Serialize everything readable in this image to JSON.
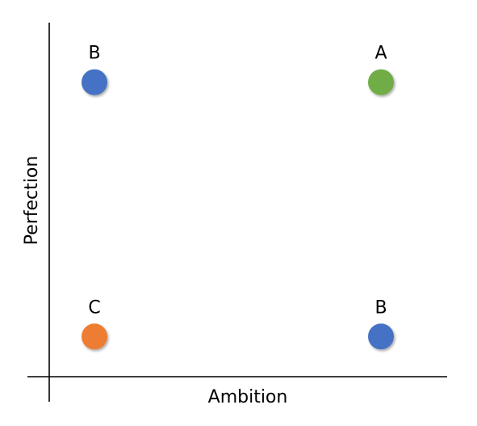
{
  "chart_data": {
    "type": "scatter",
    "xlabel": "Ambition",
    "ylabel": "Perfection",
    "xlim": [
      0,
      1
    ],
    "ylim": [
      0,
      1
    ],
    "grid": false,
    "points": [
      {
        "label": "B",
        "x": 0.12,
        "y": 0.88,
        "color": "#4472C4"
      },
      {
        "label": "A",
        "x": 0.88,
        "y": 0.88,
        "color": "#70AD47"
      },
      {
        "label": "C",
        "x": 0.12,
        "y": 0.12,
        "color": "#ED7D31"
      },
      {
        "label": "B",
        "x": 0.88,
        "y": 0.12,
        "color": "#4472C4"
      }
    ]
  }
}
